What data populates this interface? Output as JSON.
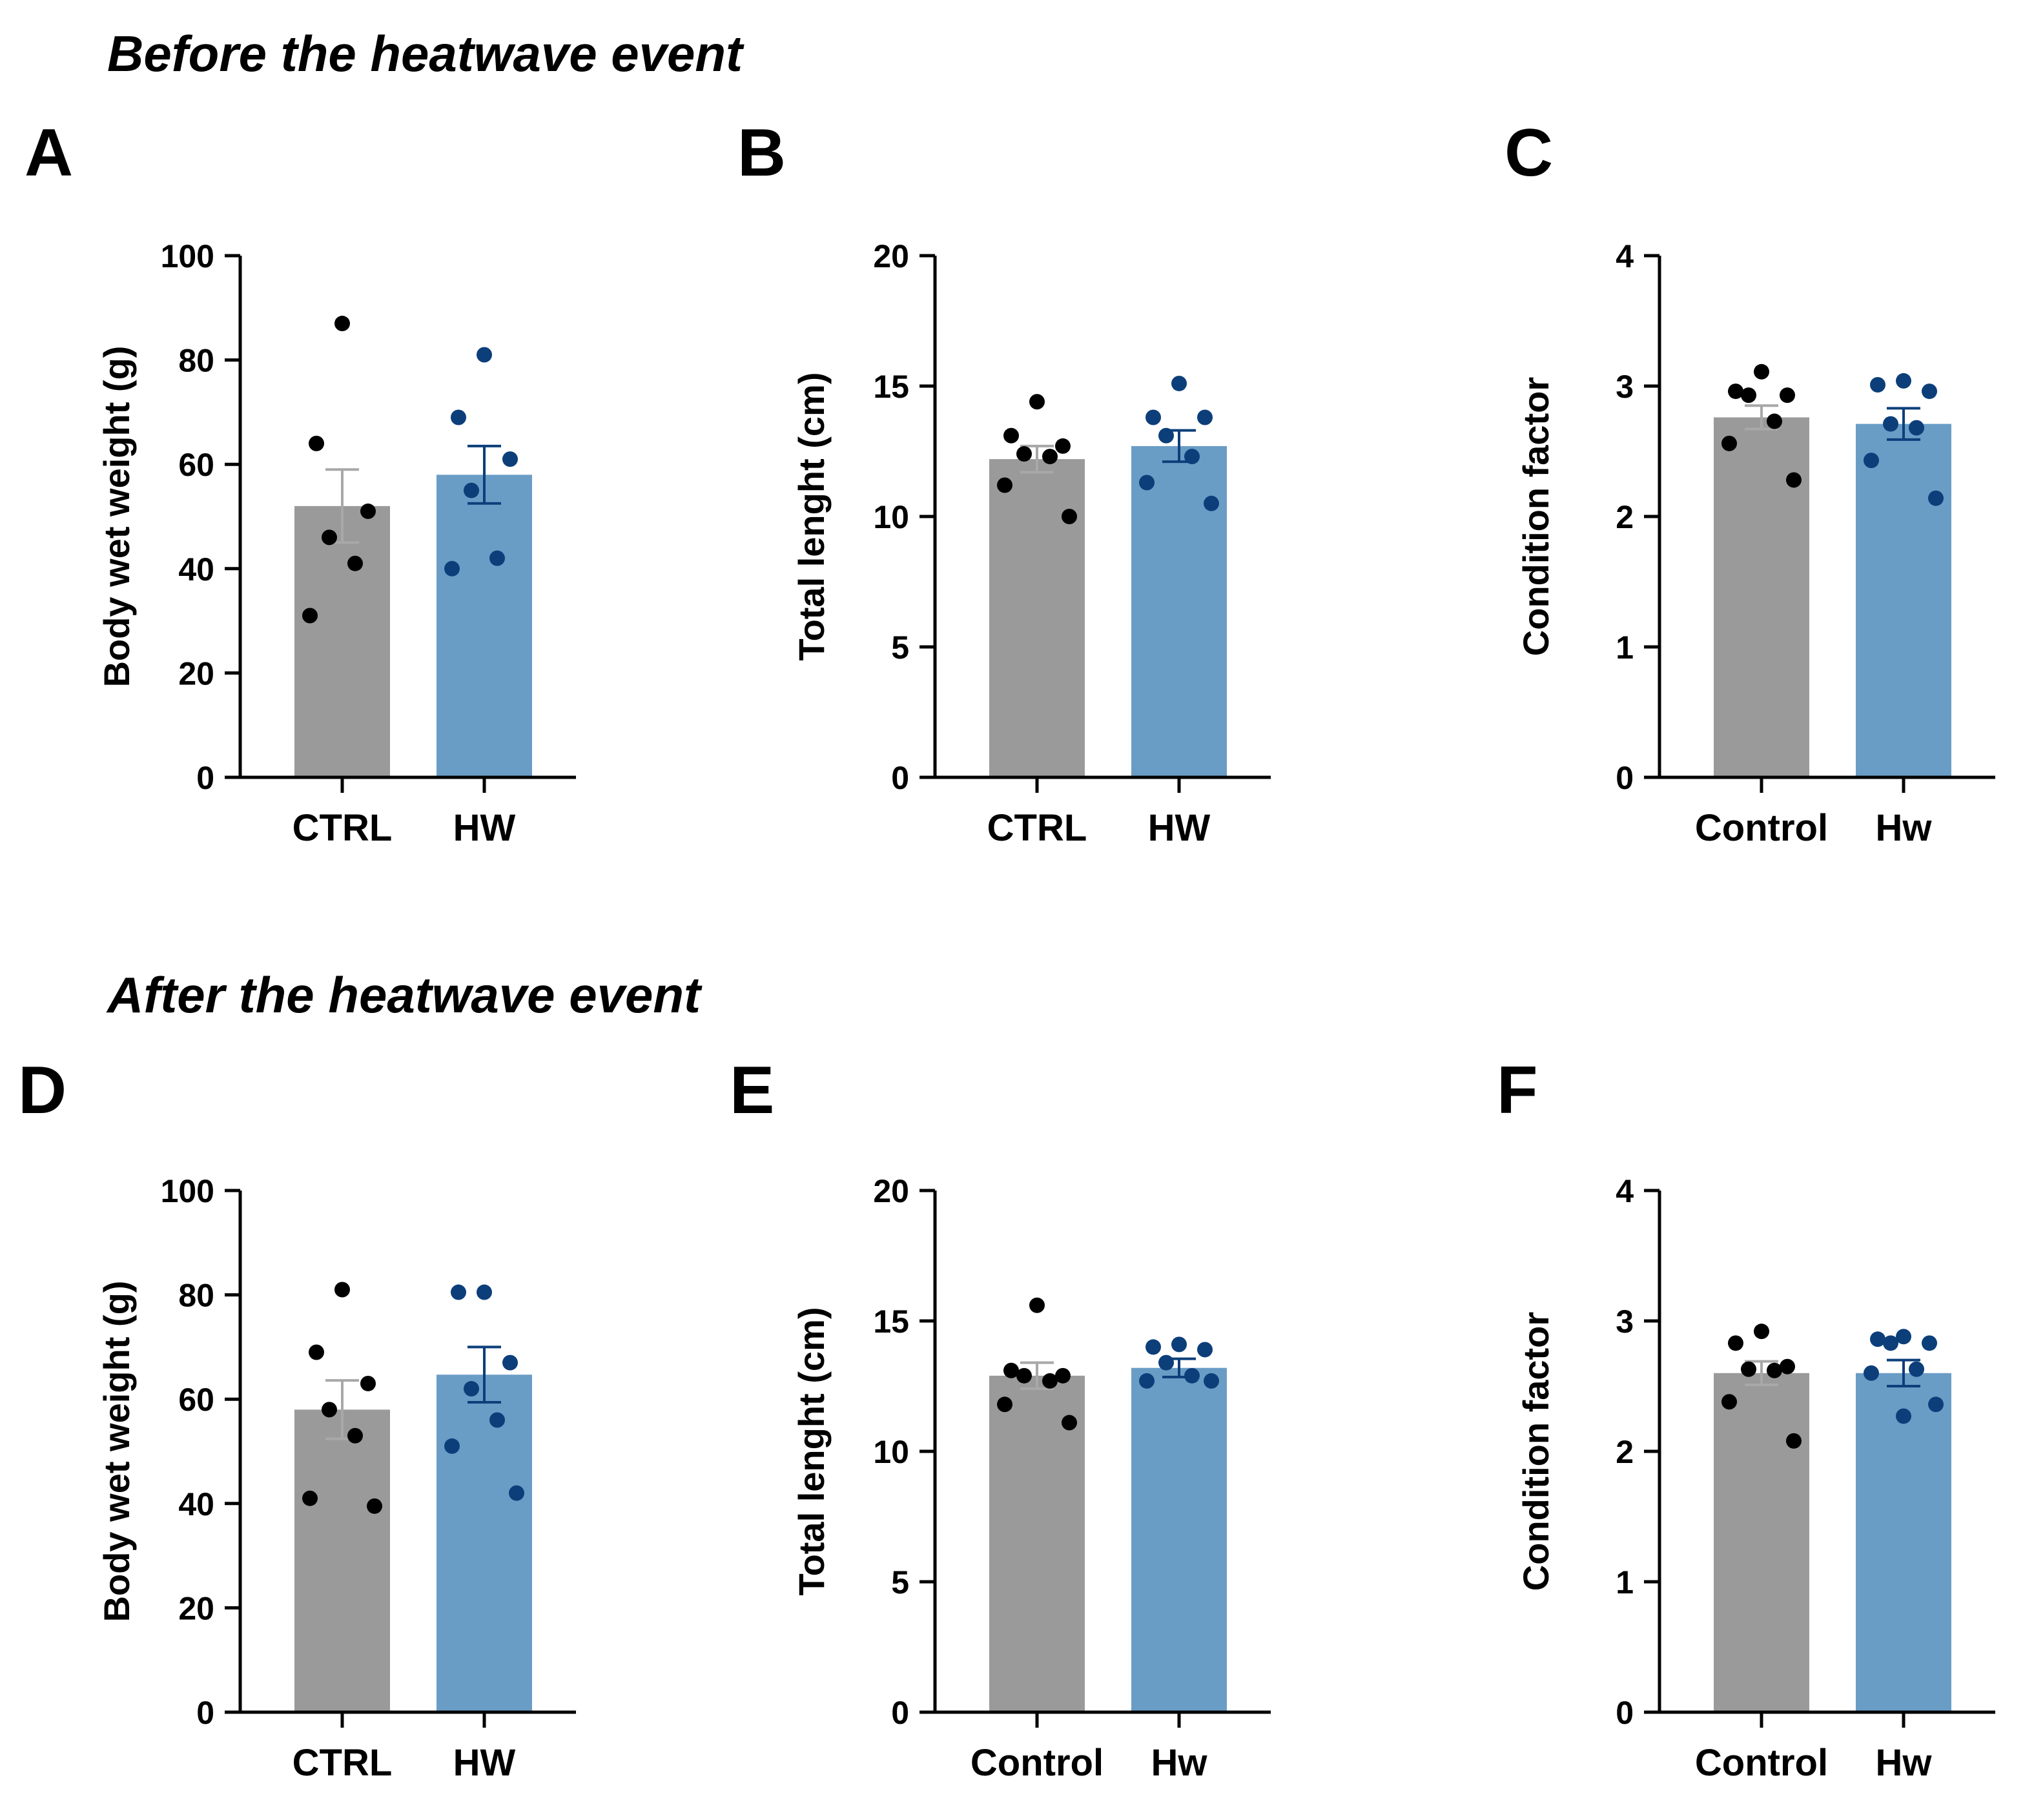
{
  "sections": [
    {
      "title": "Before the heatwave event"
    },
    {
      "title": "After the heatwave event"
    }
  ],
  "colors": {
    "control_bar": "#9a9a9a",
    "heatwave_bar": "#6a9dc6",
    "control_point": "#000000",
    "heatwave_point": "#0c3f7a",
    "control_error": "#a8a8a8",
    "heatwave_error": "#0c3f7a",
    "axis": "#000000"
  },
  "chart_data": [
    {
      "panel": "A",
      "type": "bar",
      "ylabel": "Body wet weight (g)",
      "ylim": [
        0,
        100
      ],
      "yticks": [
        0,
        20,
        40,
        60,
        80,
        100
      ],
      "categories": [
        "CTRL",
        "HW"
      ],
      "values": [
        52,
        58
      ],
      "sem": [
        7,
        5.5
      ],
      "points": [
        [
          87,
          64,
          51,
          46,
          41,
          31
        ],
        [
          81,
          69,
          61,
          55,
          42,
          40
        ]
      ]
    },
    {
      "panel": "B",
      "type": "bar",
      "ylabel": "Total lenght (cm)",
      "ylim": [
        0,
        20
      ],
      "yticks": [
        0,
        5,
        10,
        15,
        20
      ],
      "categories": [
        "CTRL",
        "HW"
      ],
      "values": [
        12.2,
        12.7
      ],
      "sem": [
        0.5,
        0.6
      ],
      "points": [
        [
          14.4,
          13.1,
          12.7,
          12.4,
          12.3,
          11.2,
          10
        ],
        [
          15.1,
          13.8,
          13.8,
          13.1,
          12.3,
          11.3,
          10.5
        ]
      ]
    },
    {
      "panel": "C",
      "type": "bar",
      "ylabel": "Condition factor",
      "ylim": [
        0,
        4
      ],
      "yticks": [
        0,
        1,
        2,
        3,
        4
      ],
      "categories": [
        "Control",
        "Hw"
      ],
      "values": [
        2.76,
        2.71
      ],
      "sem": [
        0.09,
        0.12
      ],
      "points": [
        [
          3.11,
          2.96,
          2.93,
          2.93,
          2.73,
          2.56,
          2.28
        ],
        [
          3.04,
          3.01,
          2.96,
          2.71,
          2.68,
          2.43,
          2.14
        ]
      ]
    },
    {
      "panel": "D",
      "type": "bar",
      "ylabel": "Body wet weight (g)",
      "ylim": [
        0,
        100
      ],
      "yticks": [
        0,
        20,
        40,
        60,
        80,
        100
      ],
      "categories": [
        "CTRL",
        "HW"
      ],
      "values": [
        58,
        64.7
      ],
      "sem": [
        5.6,
        5.3
      ],
      "points": [
        [
          81,
          69,
          63,
          58,
          53,
          41,
          39.5
        ],
        [
          80.5,
          80.5,
          67,
          62,
          56,
          51,
          42
        ]
      ]
    },
    {
      "panel": "E",
      "type": "bar",
      "ylabel": "Total lenght (cm)",
      "ylim": [
        0,
        20
      ],
      "yticks": [
        0,
        5,
        10,
        15,
        20
      ],
      "categories": [
        "Control",
        "Hw"
      ],
      "values": [
        12.9,
        13.2
      ],
      "sem": [
        0.5,
        0.35
      ],
      "points": [
        [
          15.6,
          13.1,
          12.9,
          12.9,
          12.7,
          11.8,
          11.1
        ],
        [
          14.1,
          14,
          13.9,
          13.4,
          12.9,
          12.7,
          12.7
        ]
      ]
    },
    {
      "panel": "F",
      "type": "bar",
      "ylabel": "Condition factor",
      "ylim": [
        0,
        4
      ],
      "yticks": [
        0,
        1,
        2,
        3,
        4
      ],
      "categories": [
        "Control",
        "Hw"
      ],
      "values": [
        2.6,
        2.6
      ],
      "sem": [
        0.09,
        0.1
      ],
      "points": [
        [
          2.92,
          2.83,
          2.65,
          2.63,
          2.62,
          2.38,
          2.08
        ],
        [
          2.88,
          2.86,
          2.83,
          2.83,
          2.63,
          2.6,
          2.36,
          2.27
        ]
      ]
    }
  ]
}
